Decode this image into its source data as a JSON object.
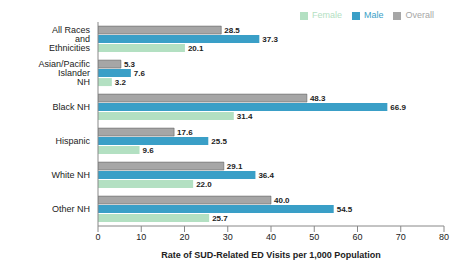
{
  "chart_data": {
    "type": "bar",
    "orientation": "horizontal",
    "categories": [
      "All Races and Ethnicities",
      "Asian/Pacific Islander NH",
      "Black NH",
      "Hispanic",
      "White NH",
      "Other NH"
    ],
    "series": [
      {
        "name": "Overall",
        "color": "#a6a6a6",
        "values": [
          28.5,
          5.3,
          48.3,
          17.6,
          29.1,
          40.0
        ],
        "value_labels": [
          "28.5",
          "5.3",
          "48.3",
          "17.6",
          "29.1",
          "40.0"
        ]
      },
      {
        "name": "Male",
        "color": "#3a9fc7",
        "values": [
          37.3,
          7.6,
          66.9,
          25.5,
          36.4,
          54.5
        ],
        "value_labels": [
          "37.3",
          "7.6",
          "66.9",
          "25.5",
          "36.4",
          "54.5"
        ]
      },
      {
        "name": "Female",
        "color": "#b3e0c2",
        "values": [
          20.1,
          3.2,
          31.4,
          9.6,
          22.0,
          25.7
        ],
        "value_labels": [
          "20.1",
          "3.2",
          "31.4",
          "9.6",
          "22.0",
          "25.7"
        ]
      }
    ],
    "xlabel": "Rate of SUD-Related ED Visits per 1,000 Population",
    "xlim": [
      0,
      80
    ],
    "xticks": [
      0,
      10,
      20,
      30,
      40,
      50,
      60,
      70,
      80
    ],
    "legend": "top",
    "data_labels": true,
    "grid": false
  }
}
